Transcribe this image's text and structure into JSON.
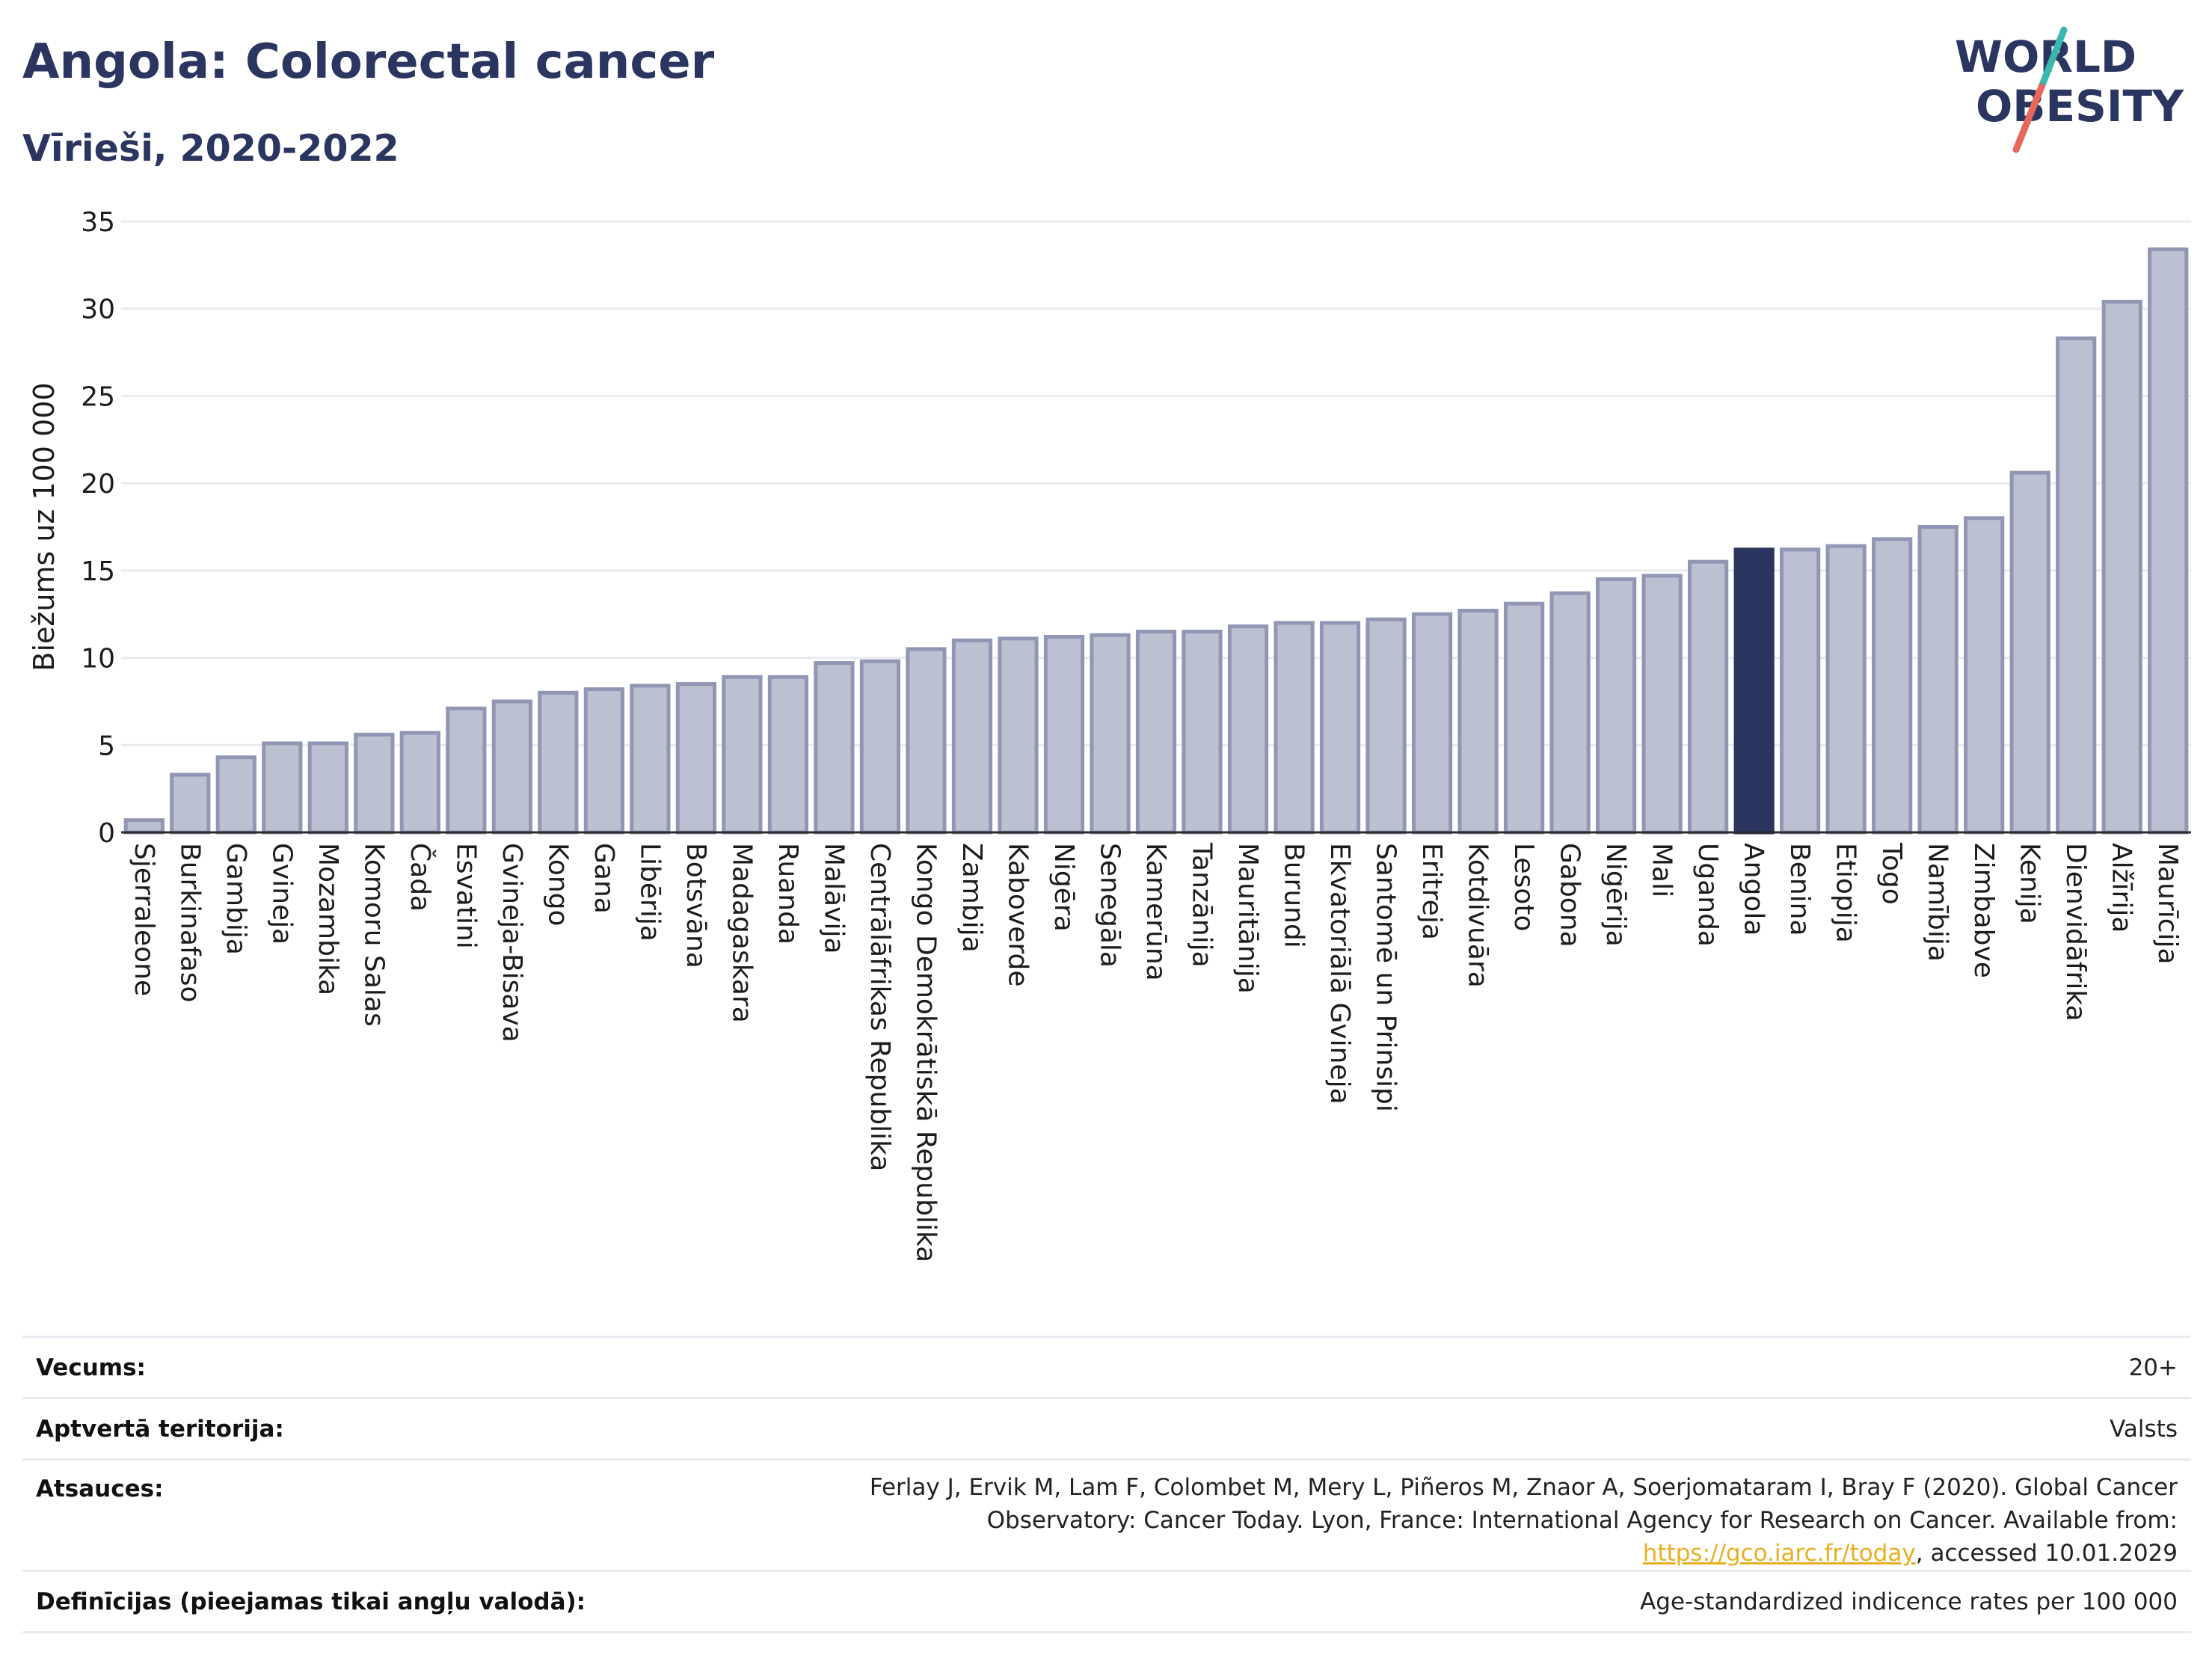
{
  "header": {
    "title": "Angola: Colorectal cancer",
    "subtitle": "Vīrieši, 2020-2022"
  },
  "logo": {
    "line1": "WORLD",
    "line2": "OBESITY"
  },
  "colors": {
    "title": "#2a3560",
    "bar": "#bcc1d1",
    "bar_border": "#9096b3",
    "highlight": "#2a3560",
    "link": "#e8b021",
    "logo_teal": "#3ab8ad",
    "logo_coral": "#e7675a"
  },
  "chart_data": {
    "type": "bar",
    "title": "Angola: Colorectal cancer",
    "subtitle": "Vīrieši, 2020-2022",
    "ylabel": "Biežums uz 100 000",
    "xlabel": "",
    "ylim": [
      0,
      35
    ],
    "yticks": [
      0,
      5,
      10,
      15,
      20,
      25,
      30,
      35
    ],
    "grid": true,
    "highlight": "Angola",
    "categories": [
      "Sjerraleone",
      "Burkinafaso",
      "Gambija",
      "Gvineja",
      "Mozambika",
      "Komoru Salas",
      "Čada",
      "Esvatini",
      "Gvineja-Bisava",
      "Kongo",
      "Gana",
      "Libērija",
      "Botsvāna",
      "Madagaskara",
      "Ruanda",
      "Malāvija",
      "Centrālāfrikas Republika",
      "Kongo Demokrātiskā Republika",
      "Zambija",
      "Kaboverde",
      "Nigēra",
      "Senegāla",
      "Kamerūna",
      "Tanzānija",
      "Mauritānija",
      "Burundi",
      "Ekvatoriālā Gvineja",
      "Santomē un Prinsipi",
      "Eritreja",
      "Kotdivuāra",
      "Lesoto",
      "Gabona",
      "Nigērija",
      "Mali",
      "Uganda",
      "Angola",
      "Benina",
      "Etiopija",
      "Togo",
      "Namībija",
      "Zimbabve",
      "Kenija",
      "Dienvidāfrika",
      "Alžīrija",
      "Maurīcija"
    ],
    "values": [
      0.7,
      3.3,
      4.3,
      5.1,
      5.1,
      5.6,
      5.7,
      7.1,
      7.5,
      8.0,
      8.2,
      8.4,
      8.5,
      8.9,
      8.9,
      9.7,
      9.8,
      10.5,
      11.0,
      11.1,
      11.2,
      11.3,
      11.5,
      11.5,
      11.8,
      12.0,
      12.0,
      12.2,
      12.5,
      12.7,
      13.1,
      13.7,
      14.5,
      14.7,
      15.5,
      16.2,
      16.2,
      16.4,
      16.8,
      17.5,
      18.0,
      20.6,
      28.3,
      30.4,
      33.4
    ]
  },
  "meta": {
    "age_label": "Vecums:",
    "age_value": "20+",
    "territory_label": "Aptvertā teritorija:",
    "territory_value": "Valsts",
    "refs_label": "Atsauces:",
    "refs_text_before": "Ferlay J, Ervik M, Lam F, Colombet M, Mery L, Piñeros M, Znaor A, Soerjomataram I, Bray F (2020). Global Cancer Observatory: Cancer Today. Lyon, France: International Agency for Research on Cancer. Available from: ",
    "refs_link": "https://gco.iarc.fr/today",
    "refs_text_after": ", accessed 10.01.2029",
    "defs_label": "Definīcijas (pieejamas tikai angļu valodā):",
    "defs_value": "Age-standardized indicence rates per 100 000"
  }
}
